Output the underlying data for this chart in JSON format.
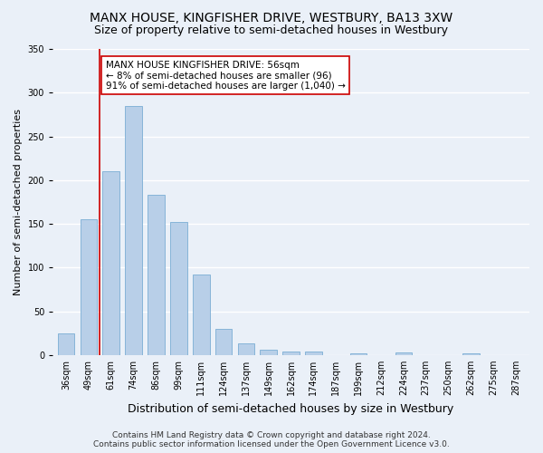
{
  "title": "MANX HOUSE, KINGFISHER DRIVE, WESTBURY, BA13 3XW",
  "subtitle": "Size of property relative to semi-detached houses in Westbury",
  "xlabel": "Distribution of semi-detached houses by size in Westbury",
  "ylabel": "Number of semi-detached properties",
  "categories": [
    "36sqm",
    "49sqm",
    "61sqm",
    "74sqm",
    "86sqm",
    "99sqm",
    "111sqm",
    "124sqm",
    "137sqm",
    "149sqm",
    "162sqm",
    "174sqm",
    "187sqm",
    "199sqm",
    "212sqm",
    "224sqm",
    "237sqm",
    "250sqm",
    "262sqm",
    "275sqm",
    "287sqm"
  ],
  "values": [
    25,
    155,
    210,
    285,
    183,
    152,
    92,
    30,
    13,
    6,
    4,
    4,
    0,
    2,
    0,
    3,
    0,
    0,
    2,
    0,
    0
  ],
  "bar_color": "#b8cfe8",
  "bar_edge_color": "#7aadd4",
  "vline_x_index": 1.5,
  "vline_color": "#cc0000",
  "annotation_line1": "MANX HOUSE KINGFISHER DRIVE: 56sqm",
  "annotation_line2": "← 8% of semi-detached houses are smaller (96)",
  "annotation_line3": "91% of semi-detached houses are larger (1,040) →",
  "annotation_box_color": "#ffffff",
  "annotation_box_edge": "#cc0000",
  "ylim": [
    0,
    350
  ],
  "yticks": [
    0,
    50,
    100,
    150,
    200,
    250,
    300,
    350
  ],
  "footer_line1": "Contains HM Land Registry data © Crown copyright and database right 2024.",
  "footer_line2": "Contains public sector information licensed under the Open Government Licence v3.0.",
  "background_color": "#eaf0f8",
  "grid_color": "#ffffff",
  "title_fontsize": 10,
  "subtitle_fontsize": 9,
  "ylabel_fontsize": 8,
  "xlabel_fontsize": 9,
  "tick_fontsize": 7,
  "annotation_fontsize": 7.5,
  "footer_fontsize": 6.5
}
